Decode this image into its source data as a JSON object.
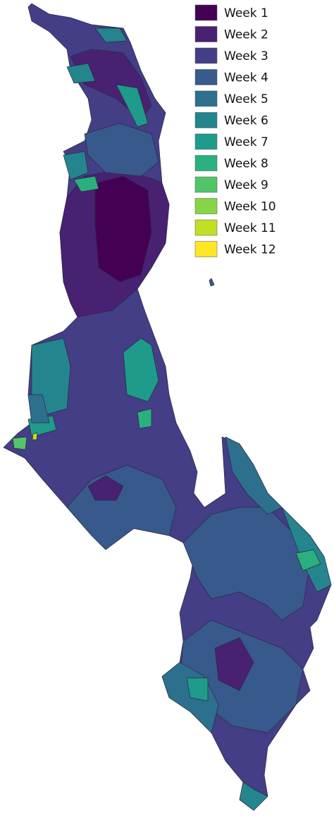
{
  "legend": {
    "items": [
      {
        "label": "Week 1",
        "color": "#440154"
      },
      {
        "label": "Week 2",
        "color": "#482173"
      },
      {
        "label": "Week 3",
        "color": "#433e85"
      },
      {
        "label": "Week 4",
        "color": "#38598c"
      },
      {
        "label": "Week 5",
        "color": "#2d708e"
      },
      {
        "label": "Week 6",
        "color": "#25858e"
      },
      {
        "label": "Week 7",
        "color": "#1e9b8a"
      },
      {
        "label": "Week 8",
        "color": "#2ab07f"
      },
      {
        "label": "Week 9",
        "color": "#52c569"
      },
      {
        "label": "Week 10",
        "color": "#86d549"
      },
      {
        "label": "Week 11",
        "color": "#c2df23"
      },
      {
        "label": "Week 12",
        "color": "#fde725"
      }
    ]
  }
}
